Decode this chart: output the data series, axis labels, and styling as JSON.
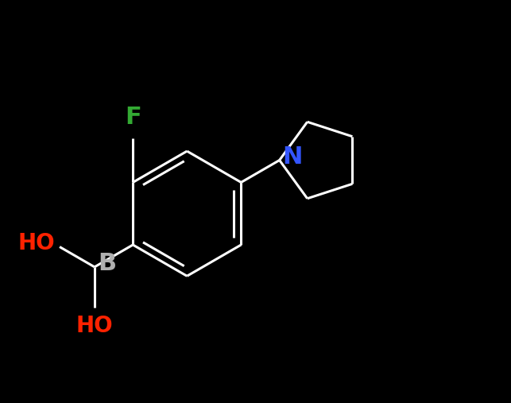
{
  "background_color": "#000000",
  "bond_color": "#ffffff",
  "bond_lw": 2.2,
  "atom_labels": {
    "F": {
      "color": "#33aa33",
      "fontsize": 22
    },
    "B": {
      "color": "#b0b0b0",
      "fontsize": 22
    },
    "HO_left": {
      "color": "#ff2200",
      "fontsize": 20,
      "label": "HO"
    },
    "HO_bottom": {
      "color": "#ff2200",
      "fontsize": 20,
      "label": "HO"
    },
    "N": {
      "color": "#3355ff",
      "fontsize": 22
    }
  },
  "figsize": [
    6.43,
    5.07
  ],
  "dpi": 100
}
